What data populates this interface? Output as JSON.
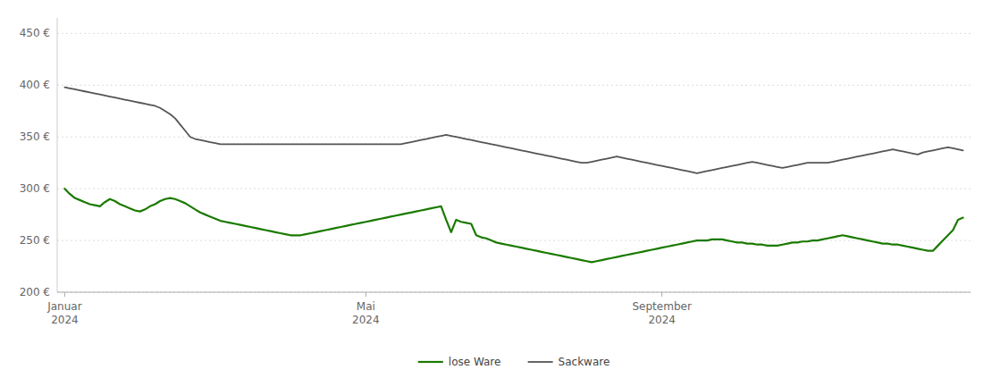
{
  "chart_data": {
    "type": "line",
    "categories": [
      "Januar\n2024",
      null,
      null,
      null,
      null,
      null,
      null,
      null,
      null,
      null,
      null,
      null,
      null,
      null,
      null,
      null,
      null,
      null,
      null,
      null,
      null,
      null,
      null,
      null,
      null,
      null,
      null,
      null,
      null,
      null,
      null,
      null,
      null,
      null,
      null,
      null,
      null,
      null,
      null,
      null,
      null,
      null,
      null,
      null,
      null,
      null,
      null,
      null,
      null,
      null,
      null,
      null,
      null,
      null,
      null,
      null,
      null,
      null,
      null,
      null,
      "Mai\n2024",
      null,
      null,
      null,
      null,
      null,
      null,
      null,
      null,
      null,
      null,
      null,
      null,
      null,
      null,
      null,
      null,
      null,
      null,
      null,
      null,
      null,
      null,
      null,
      null,
      null,
      null,
      null,
      null,
      null,
      null,
      null,
      null,
      null,
      null,
      null,
      null,
      null,
      null,
      null,
      null,
      null,
      null,
      null,
      null,
      null,
      null,
      null,
      null,
      null,
      null,
      null,
      null,
      null,
      null,
      null,
      null,
      null,
      null,
      "September\n2024",
      null,
      null,
      null,
      null,
      null,
      null,
      null,
      null,
      null,
      null,
      null,
      null,
      null,
      null,
      null,
      null,
      null,
      null,
      null,
      null,
      null,
      null,
      null,
      null,
      null,
      null,
      null,
      null,
      null,
      null,
      null,
      null,
      null,
      null,
      null,
      null,
      null,
      null,
      null,
      null,
      null,
      null,
      null,
      null,
      null,
      null,
      null,
      null,
      null,
      null,
      null,
      null,
      null,
      null,
      null,
      null,
      null,
      null,
      null,
      null
    ],
    "series": [
      {
        "name": "lose Ware",
        "color": "#1a7a00",
        "values": [
          300,
          295,
          291,
          289,
          287,
          285,
          284,
          283,
          287,
          290,
          288,
          285,
          283,
          281,
          279,
          278,
          280,
          283,
          285,
          288,
          290,
          291,
          290,
          288,
          286,
          283,
          280,
          277,
          275,
          273,
          271,
          269,
          268,
          267,
          266,
          265,
          264,
          263,
          262,
          261,
          260,
          259,
          258,
          257,
          256,
          255,
          255,
          255,
          256,
          257,
          258,
          259,
          260,
          261,
          262,
          263,
          264,
          265,
          266,
          267,
          268,
          269,
          270,
          271,
          272,
          273,
          274,
          275,
          276,
          277,
          278,
          279,
          280,
          281,
          282,
          283,
          270,
          258,
          270,
          268,
          267,
          266,
          255,
          253,
          252,
          250,
          248,
          247,
          246,
          245,
          244,
          243,
          242,
          241,
          240,
          239,
          238,
          237,
          236,
          235,
          234,
          233,
          232,
          231,
          230,
          229,
          230,
          231,
          232,
          233,
          234,
          235,
          236,
          237,
          238,
          239,
          240,
          241,
          242,
          243,
          244,
          245,
          246,
          247,
          248,
          249,
          250,
          250,
          250,
          251,
          251,
          251,
          250,
          249,
          248,
          248,
          247,
          247,
          246,
          246,
          245,
          245,
          245,
          246,
          247,
          248,
          248,
          249,
          249,
          250,
          250,
          251,
          252,
          253,
          254,
          255,
          254,
          253,
          252,
          251,
          250,
          249,
          248,
          247,
          247,
          246,
          246,
          245,
          244,
          243,
          242,
          241,
          240,
          240,
          245,
          250,
          255,
          260,
          270,
          272
        ]
      },
      {
        "name": "Sackware",
        "color": "#555555",
        "values": [
          398,
          397,
          396,
          395,
          394,
          393,
          392,
          391,
          390,
          389,
          388,
          387,
          386,
          385,
          384,
          383,
          382,
          381,
          380,
          378,
          375,
          372,
          368,
          362,
          356,
          350,
          348,
          347,
          346,
          345,
          344,
          343,
          343,
          343,
          343,
          343,
          343,
          343,
          343,
          343,
          343,
          343,
          343,
          343,
          343,
          343,
          343,
          343,
          343,
          343,
          343,
          343,
          343,
          343,
          343,
          343,
          343,
          343,
          343,
          343,
          343,
          343,
          343,
          343,
          343,
          343,
          343,
          343,
          344,
          345,
          346,
          347,
          348,
          349,
          350,
          351,
          352,
          351,
          350,
          349,
          348,
          347,
          346,
          345,
          344,
          343,
          342,
          341,
          340,
          339,
          338,
          337,
          336,
          335,
          334,
          333,
          332,
          331,
          330,
          329,
          328,
          327,
          326,
          325,
          325,
          326,
          327,
          328,
          329,
          330,
          331,
          330,
          329,
          328,
          327,
          326,
          325,
          324,
          323,
          322,
          321,
          320,
          319,
          318,
          317,
          316,
          315,
          316,
          317,
          318,
          319,
          320,
          321,
          322,
          323,
          324,
          325,
          326,
          325,
          324,
          323,
          322,
          321,
          320,
          321,
          322,
          323,
          324,
          325,
          325,
          325,
          325,
          325,
          326,
          327,
          328,
          329,
          330,
          331,
          332,
          333,
          334,
          335,
          336,
          337,
          338,
          337,
          336,
          335,
          334,
          333,
          335,
          336,
          337,
          338,
          339,
          340,
          339,
          338,
          337
        ]
      }
    ],
    "ylim": [
      200,
      465
    ],
    "yticks": [
      {
        "value": 200,
        "label": "200 €"
      },
      {
        "value": 250,
        "label": "250 €"
      },
      {
        "value": 300,
        "label": "300 €"
      },
      {
        "value": 350,
        "label": "350 €"
      },
      {
        "value": 400,
        "label": "400 €"
      },
      {
        "value": 450,
        "label": "450 €"
      }
    ],
    "grid": true,
    "legend": "bottom"
  }
}
